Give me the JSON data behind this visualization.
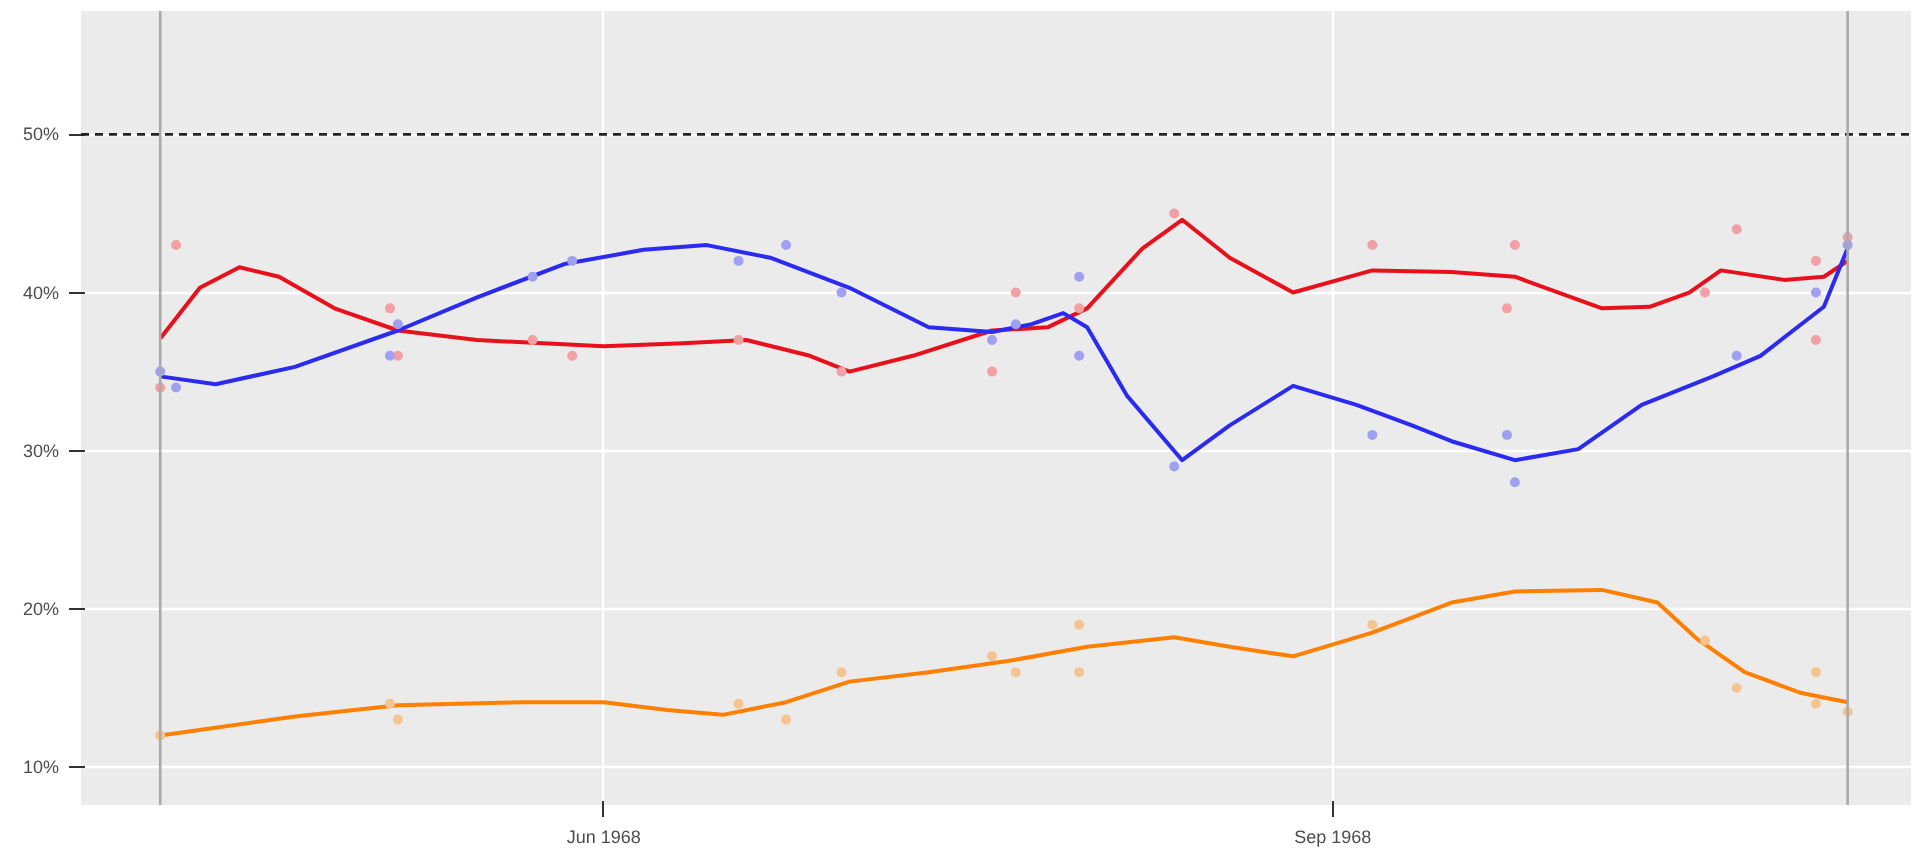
{
  "chart_data": {
    "type": "line",
    "xlim": [
      "1968-03-27",
      "1968-11-13"
    ],
    "ylim": [
      7.6,
      57.8
    ],
    "xticks": [
      {
        "value": "1968-06-01",
        "label": "Jun 1968"
      },
      {
        "value": "1968-09-01",
        "label": "Sep 1968"
      }
    ],
    "yticks": [
      {
        "value": 10,
        "label": "10%"
      },
      {
        "value": 20,
        "label": "20%"
      },
      {
        "value": 30,
        "label": "30%"
      },
      {
        "value": 40,
        "label": "40%"
      },
      {
        "value": 50,
        "label": "50%"
      }
    ],
    "grid": true,
    "ref_lines": [
      {
        "axis": "y",
        "value": 50,
        "color": "#222222",
        "line_style": "dashed"
      },
      {
        "axis": "x",
        "value": "1968-04-06",
        "color": "#aaaaaa"
      },
      {
        "axis": "x",
        "value": "1968-11-05",
        "color": "#aaaaaa"
      }
    ],
    "series": [
      {
        "type": "scatter",
        "marker": "circle",
        "color": "#f2a0a4",
        "x": [
          "1968-04-06",
          "1968-04-08",
          "1968-05-05",
          "1968-05-06",
          "1968-05-23",
          "1968-05-28",
          "1968-06-18",
          "1968-07-01",
          "1968-07-20",
          "1968-07-23",
          "1968-07-31",
          "1968-08-12",
          "1968-09-06",
          "1968-09-23",
          "1968-09-24",
          "1968-10-18",
          "1968-10-22",
          "1968-11-01",
          "1968-11-01",
          "1968-11-05"
        ],
        "values": [
          34,
          43,
          39,
          36,
          37,
          36,
          37,
          35,
          35,
          40,
          39,
          45,
          43,
          39,
          43,
          40,
          44,
          42,
          37,
          43.5
        ]
      },
      {
        "type": "scatter",
        "marker": "circle",
        "color": "#a0a0f2",
        "x": [
          "1968-04-06",
          "1968-04-08",
          "1968-05-05",
          "1968-05-06",
          "1968-05-23",
          "1968-05-28",
          "1968-06-18",
          "1968-06-24",
          "1968-07-01",
          "1968-07-20",
          "1968-07-23",
          "1968-07-31",
          "1968-07-31",
          "1968-08-12",
          "1968-09-06",
          "1968-09-23",
          "1968-09-24",
          "1968-10-22",
          "1968-11-01",
          "1968-11-05"
        ],
        "values": [
          35,
          34,
          36,
          38,
          41,
          42,
          42,
          43,
          40,
          37,
          38,
          41,
          36,
          29,
          31,
          31,
          28,
          36,
          40,
          43
        ]
      },
      {
        "type": "scatter",
        "marker": "circle",
        "color": "#f5c48f",
        "x": [
          "1968-04-06",
          "1968-05-05",
          "1968-05-06",
          "1968-06-18",
          "1968-06-24",
          "1968-07-01",
          "1968-07-20",
          "1968-07-23",
          "1968-07-31",
          "1968-07-31",
          "1968-09-06",
          "1968-10-18",
          "1968-10-22",
          "1968-11-01",
          "1968-11-01",
          "1968-11-05"
        ],
        "values": [
          12,
          14,
          13,
          14,
          13,
          16,
          17,
          16,
          19,
          16,
          19,
          18,
          15,
          16,
          14,
          13.5
        ]
      },
      {
        "color": "#e8111b",
        "x": [
          "1968-04-06",
          "1968-04-11",
          "1968-04-16",
          "1968-04-21",
          "1968-04-28",
          "1968-05-06",
          "1968-05-16",
          "1968-06-01",
          "1968-06-11",
          "1968-06-19",
          "1968-06-27",
          "1968-07-02",
          "1968-07-10",
          "1968-07-20",
          "1968-07-27",
          "1968-08-01",
          "1968-08-08",
          "1968-08-13",
          "1968-08-19",
          "1968-08-27",
          "1968-09-06",
          "1968-09-16",
          "1968-09-24",
          "1968-10-05",
          "1968-10-11",
          "1968-10-16",
          "1968-10-20",
          "1968-10-28",
          "1968-11-02",
          "1968-11-05"
        ],
        "values": [
          37.1,
          40.3,
          41.6,
          41,
          39,
          37.6,
          37,
          36.6,
          36.8,
          37,
          36,
          35,
          36,
          37.6,
          37.8,
          39,
          42.8,
          44.6,
          42.2,
          40,
          41.4,
          41.3,
          41,
          39,
          39.1,
          40,
          41.4,
          40.8,
          41,
          42
        ]
      },
      {
        "color": "#2a2af0",
        "x": [
          "1968-04-06",
          "1968-04-13",
          "1968-04-23",
          "1968-05-06",
          "1968-05-16",
          "1968-05-27",
          "1968-06-06",
          "1968-06-14",
          "1968-06-22",
          "1968-07-02",
          "1968-07-12",
          "1968-07-20",
          "1968-07-25",
          "1968-07-29",
          "1968-08-01",
          "1968-08-06",
          "1968-08-13",
          "1968-08-19",
          "1968-08-27",
          "1968-09-04",
          "1968-09-11",
          "1968-09-16",
          "1968-09-24",
          "1968-10-02",
          "1968-10-10",
          "1968-10-19",
          "1968-10-25",
          "1968-11-02",
          "1968-11-05"
        ],
        "values": [
          34.7,
          34.2,
          35.3,
          37.6,
          39.7,
          41.8,
          42.7,
          43,
          42.2,
          40.3,
          37.8,
          37.5,
          38,
          38.7,
          37.8,
          33.5,
          29.4,
          31.6,
          34.1,
          32.9,
          31.6,
          30.6,
          29.4,
          30.1,
          32.9,
          34.7,
          36,
          39.1,
          42.8
        ]
      },
      {
        "color": "#ff8000",
        "x": [
          "1968-04-06",
          "1968-04-23",
          "1968-05-06",
          "1968-05-22",
          "1968-06-01",
          "1968-06-09",
          "1968-06-16",
          "1968-06-24",
          "1968-07-02",
          "1968-07-12",
          "1968-07-22",
          "1968-08-01",
          "1968-08-12",
          "1968-08-19",
          "1968-08-27",
          "1968-09-06",
          "1968-09-16",
          "1968-09-24",
          "1968-10-05",
          "1968-10-12",
          "1968-10-17",
          "1968-10-23",
          "1968-10-30",
          "1968-11-05"
        ],
        "values": [
          12,
          13.2,
          13.9,
          14.1,
          14.1,
          13.6,
          13.3,
          14.1,
          15.4,
          16,
          16.7,
          17.6,
          18.2,
          17.6,
          17,
          18.5,
          20.4,
          21.1,
          21.2,
          20.4,
          18.1,
          16,
          14.7,
          14.1
        ]
      }
    ]
  }
}
